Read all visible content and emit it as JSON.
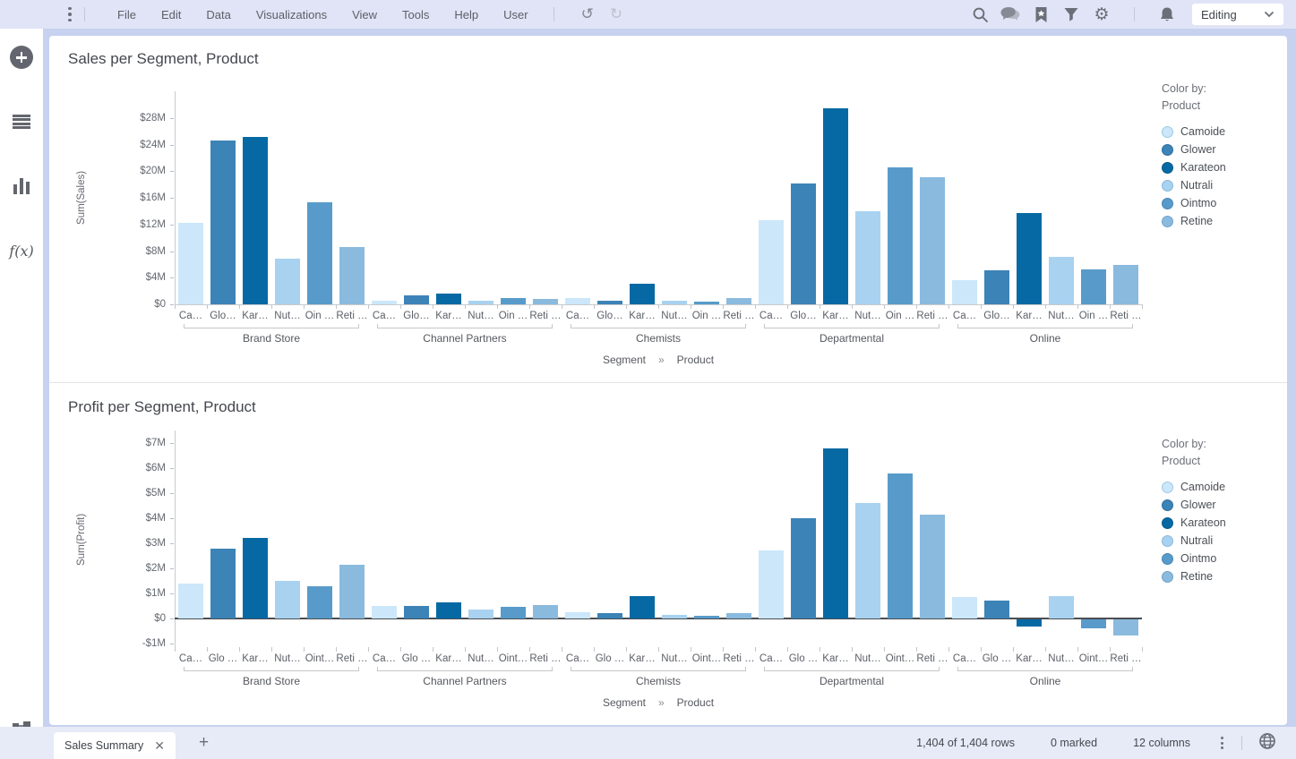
{
  "topbar": {
    "menu_items": [
      "File",
      "Edit",
      "Data",
      "Visualizations",
      "View",
      "Tools",
      "Help",
      "User"
    ],
    "mode_selector_label": "Editing",
    "icons": [
      "kebab-menu",
      "undo",
      "redo",
      "search",
      "comments",
      "bookmarks",
      "filters",
      "settings",
      "notifications"
    ]
  },
  "sidebar": {
    "fx_label": "f(x)",
    "icons": [
      "new-visualization",
      "data-in-analysis",
      "visualization-types",
      "functions",
      "analytic-structure"
    ]
  },
  "chart_data": [
    {
      "type": "bar",
      "title": "Sales per Segment, Product",
      "ylabel": "Sum(Sales)",
      "xlabel_dim1": "Segment",
      "xlabel_sep": "»",
      "xlabel_dim2": "Product",
      "legend_caption_1": "Color by:",
      "legend_caption_2": "Product",
      "legend_position": "right",
      "grid": false,
      "unit": "USD millions",
      "ylim": [
        0,
        29.8
      ],
      "yticks": [
        0,
        4,
        8,
        12,
        16,
        20,
        24,
        28
      ],
      "ytick_labels": [
        "$0",
        "$4M",
        "$8M",
        "$12M",
        "$16M",
        "$20M",
        "$24M",
        "$28M"
      ],
      "bar_tick_labels": [
        "Ca…",
        "Glo…",
        "Kar…",
        "Nut…",
        "Oin …",
        "Reti …"
      ],
      "series_names": [
        "Camoide",
        "Glower",
        "Karateon",
        "Nutrali",
        "Ointmo",
        "Retine"
      ],
      "categories": [
        "Brand Store",
        "Channel Partners",
        "Chemists",
        "Departmental",
        "Online"
      ],
      "series": [
        {
          "name": "Camoide",
          "values": [
            12.3,
            0.6,
            1.0,
            12.7,
            3.7
          ]
        },
        {
          "name": "Glower",
          "values": [
            24.6,
            1.3,
            0.5,
            18.2,
            5.1
          ]
        },
        {
          "name": "Karateon",
          "values": [
            25.2,
            1.6,
            3.1,
            29.5,
            13.7
          ]
        },
        {
          "name": "Nutrali",
          "values": [
            6.8,
            0.6,
            0.6,
            14.0,
            7.2
          ]
        },
        {
          "name": "Ointmo",
          "values": [
            15.3,
            0.9,
            0.4,
            20.6,
            5.2
          ]
        },
        {
          "name": "Retine",
          "values": [
            8.6,
            0.8,
            0.9,
            19.1,
            5.9
          ]
        }
      ]
    },
    {
      "type": "bar",
      "title": "Profit per Segment, Product",
      "ylabel": "Sum(Profit)",
      "xlabel_dim1": "Segment",
      "xlabel_sep": "»",
      "xlabel_dim2": "Product",
      "legend_caption_1": "Color by:",
      "legend_caption_2": "Product",
      "legend_position": "right",
      "grid": false,
      "unit": "USD millions",
      "ylim": [
        -1.15,
        7.5
      ],
      "yticks": [
        -1,
        0,
        1,
        2,
        3,
        4,
        5,
        6,
        7
      ],
      "ytick_labels": [
        "-$1M",
        "$0",
        "$1M",
        "$2M",
        "$3M",
        "$4M",
        "$5M",
        "$6M",
        "$7M"
      ],
      "bar_tick_labels": [
        "Ca…",
        "Glo …",
        "Kar…",
        "Nut…",
        "Oint…",
        "Reti …"
      ],
      "series_names": [
        "Camoide",
        "Glower",
        "Karateon",
        "Nutrali",
        "Ointmo",
        "Retine"
      ],
      "categories": [
        "Brand Store",
        "Channel Partners",
        "Chemists",
        "Departmental",
        "Online"
      ],
      "series": [
        {
          "name": "Camoide",
          "values": [
            1.4,
            0.5,
            0.25,
            2.7,
            0.85
          ]
        },
        {
          "name": "Glower",
          "values": [
            2.8,
            0.5,
            0.2,
            4.0,
            0.7
          ]
        },
        {
          "name": "Karateon",
          "values": [
            3.2,
            0.65,
            0.9,
            6.8,
            -0.3
          ]
        },
        {
          "name": "Nutrali",
          "values": [
            1.5,
            0.35,
            0.15,
            4.6,
            0.9
          ]
        },
        {
          "name": "Ointmo",
          "values": [
            1.3,
            0.45,
            0.1,
            5.8,
            -0.35
          ]
        },
        {
          "name": "Retine",
          "values": [
            2.15,
            0.55,
            0.2,
            4.15,
            -0.65
          ]
        }
      ]
    }
  ],
  "series_colors": {
    "Camoide": "#cbe7f9",
    "Glower": "#3c83b7",
    "Karateon": "#0669a3",
    "Nutrali": "#a9d2f0",
    "Ointmo": "#589bca",
    "Retine": "#8abade"
  },
  "series_border_colors": {
    "Camoide": "#9cc8e6",
    "Glower": "#2f6f9f",
    "Karateon": "#055a8c",
    "Nutrali": "#86b8dd",
    "Ointmo": "#4686b5",
    "Retine": "#6fa3cc"
  },
  "statusbar": {
    "active_tab_label": "Sales Summary",
    "rows_info": "1,404 of 1,404 rows",
    "marked_info": "0 marked",
    "columns_info": "12 columns"
  }
}
